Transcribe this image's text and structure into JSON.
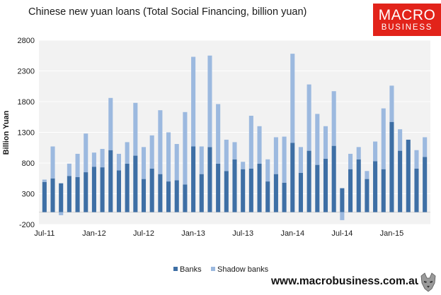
{
  "title": "Chinese new yuan loans (Total Social Financing, billion yuan)",
  "logo": {
    "line1": "MACRO",
    "line2": "BUSINESS",
    "color": "#e2231a"
  },
  "footer": {
    "url": "www.macrobusiness.com.au"
  },
  "colors": {
    "banks": "#3e6fa5",
    "shadow_banks": "#9cb9df",
    "plot_background": "#f2f2f2",
    "gridline": "#ffffff"
  },
  "chart_data": {
    "type": "bar",
    "stacked": true,
    "ylabel": "Billion Yuan",
    "xlabel": "",
    "ylim": [
      -200,
      2800
    ],
    "yticks": [
      -200,
      300,
      800,
      1300,
      1800,
      2300,
      2800
    ],
    "grid": true,
    "legend_position": "bottom",
    "categories": [
      "Jul-11",
      "Aug-11",
      "Sep-11",
      "Oct-11",
      "Nov-11",
      "Dec-11",
      "Jan-12",
      "Feb-12",
      "Mar-12",
      "Apr-12",
      "May-12",
      "Jun-12",
      "Jul-12",
      "Aug-12",
      "Sep-12",
      "Oct-12",
      "Nov-12",
      "Dec-12",
      "Jan-13",
      "Feb-13",
      "Mar-13",
      "Apr-13",
      "May-13",
      "Jun-13",
      "Jul-13",
      "Aug-13",
      "Sep-13",
      "Oct-13",
      "Nov-13",
      "Dec-13",
      "Jan-14",
      "Feb-14",
      "Mar-14",
      "Apr-14",
      "May-14",
      "Jun-14",
      "Jul-14",
      "Aug-14",
      "Sep-14",
      "Oct-14",
      "Nov-14",
      "Dec-14",
      "Jan-15",
      "Feb-15",
      "Mar-15",
      "Apr-15",
      "May-15"
    ],
    "x_tick_labels": [
      "Jul-11",
      "Jan-12",
      "Jul-12",
      "Jan-13",
      "Jul-13",
      "Jan-14",
      "Jul-14",
      "Jan-15"
    ],
    "series": [
      {
        "name": "Banks",
        "values": [
          490,
          550,
          470,
          590,
          570,
          650,
          740,
          730,
          1010,
          680,
          790,
          920,
          540,
          710,
          620,
          500,
          520,
          450,
          1070,
          620,
          1060,
          790,
          670,
          860,
          700,
          710,
          790,
          500,
          620,
          480,
          1130,
          640,
          1000,
          770,
          870,
          1080,
          390,
          700,
          860,
          540,
          830,
          700,
          1470,
          1000,
          1180,
          710,
          900
        ]
      },
      {
        "name": "Shadow banks",
        "values": [
          40,
          520,
          -50,
          200,
          380,
          630,
          230,
          300,
          850,
          270,
          350,
          860,
          520,
          540,
          1040,
          800,
          590,
          1180,
          1460,
          450,
          1490,
          970,
          510,
          280,
          120,
          860,
          610,
          360,
          600,
          750,
          1450,
          420,
          1080,
          830,
          530,
          890,
          -130,
          250,
          200,
          130,
          320,
          990,
          590,
          350,
          0,
          300,
          320
        ]
      }
    ]
  }
}
